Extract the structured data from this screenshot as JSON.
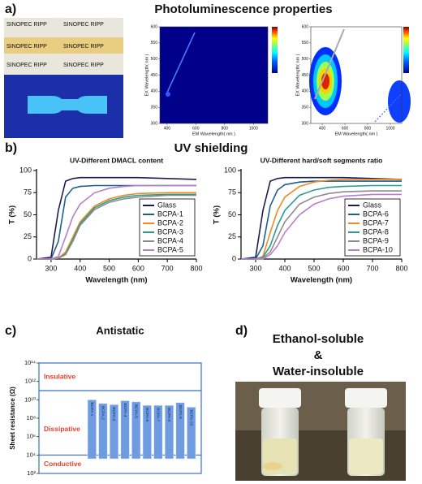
{
  "panels": {
    "a": {
      "label": "a)",
      "title": "Photoluminescence properties",
      "photo_text": "SINOPEC RIPP"
    },
    "b": {
      "label": "b)",
      "title": "UV shielding"
    },
    "c": {
      "label": "c)"
    },
    "d": {
      "label": "d)",
      "title": [
        "Ethanol-soluble",
        "&",
        "Water-insoluble"
      ]
    }
  },
  "chart_data": [
    {
      "type": "contour",
      "xlabel": "EM Wavelength( nm )",
      "ylabel": "EX Wavelength( nm )",
      "xlim": [
        350,
        1100
      ],
      "xticks": [
        400,
        600,
        800,
        1000
      ],
      "ylim": [
        300,
        600
      ],
      "yticks": [
        300,
        350,
        400,
        450,
        500,
        550,
        600
      ]
    },
    {
      "type": "contour",
      "xlabel": "EM Wavelength( nm )",
      "ylabel": "EX Wavelength( nm )",
      "xlim": [
        300,
        1100
      ],
      "xticks": [
        400,
        600,
        800,
        1000
      ],
      "ylim": [
        300,
        600
      ],
      "yticks": [
        300,
        350,
        400,
        450,
        500,
        550,
        600
      ]
    },
    {
      "type": "line",
      "title": "UV-Different DMACL content",
      "xlabel": "Wavelength (nm)",
      "ylabel": "T (%)",
      "x": [
        250,
        300,
        325,
        350,
        375,
        400,
        450,
        500,
        550,
        600,
        700,
        800
      ],
      "xlim": [
        250,
        800
      ],
      "xticks": [
        300,
        400,
        500,
        600,
        700,
        800
      ],
      "ylim": [
        0,
        100
      ],
      "yticks": [
        0,
        25,
        50,
        75,
        100
      ],
      "legend": "lower right",
      "series": [
        {
          "name": "Glass",
          "color": "#1b1f4f",
          "values": [
            0,
            2,
            55,
            88,
            91,
            92,
            92,
            92,
            92,
            92,
            91,
            90
          ]
        },
        {
          "name": "BCPA-1",
          "color": "#1f5f8f",
          "values": [
            0,
            0,
            20,
            70,
            80,
            82,
            83,
            83,
            83,
            83,
            83,
            83
          ]
        },
        {
          "name": "BCPA-2",
          "color": "#f08a24",
          "values": [
            0,
            0,
            1,
            8,
            25,
            42,
            60,
            68,
            72,
            74,
            75,
            75
          ]
        },
        {
          "name": "BCPA-3",
          "color": "#2a9d8f",
          "values": [
            0,
            0,
            1,
            6,
            22,
            40,
            58,
            66,
            70,
            72,
            73,
            73
          ]
        },
        {
          "name": "BCPA-4",
          "color": "#8c8c8c",
          "values": [
            0,
            0,
            1,
            5,
            20,
            38,
            56,
            64,
            68,
            70,
            72,
            72
          ]
        },
        {
          "name": "BCPA-5",
          "color": "#b97fc9",
          "values": [
            0,
            0,
            3,
            25,
            48,
            62,
            75,
            80,
            82,
            83,
            83,
            83
          ]
        }
      ]
    },
    {
      "type": "line",
      "title": "UV-Different hard/soft segments ratio",
      "xlabel": "Wavelength (nm)",
      "ylabel": "T (%)",
      "x": [
        250,
        300,
        325,
        350,
        375,
        400,
        450,
        500,
        550,
        600,
        700,
        800
      ],
      "xlim": [
        250,
        800
      ],
      "xticks": [
        300,
        400,
        500,
        600,
        700,
        800
      ],
      "ylim": [
        0,
        100
      ],
      "yticks": [
        0,
        25,
        50,
        75,
        100
      ],
      "legend": "lower right",
      "series": [
        {
          "name": "Glass",
          "color": "#1b1f4f",
          "values": [
            0,
            2,
            55,
            88,
            91,
            92,
            92,
            92,
            92,
            92,
            91,
            90
          ]
        },
        {
          "name": "BCPA-6",
          "color": "#1f5f8f",
          "values": [
            0,
            0,
            15,
            60,
            78,
            84,
            87,
            88,
            88,
            88,
            88,
            88
          ]
        },
        {
          "name": "BCPA-7",
          "color": "#f08a24",
          "values": [
            0,
            0,
            3,
            30,
            55,
            70,
            82,
            87,
            89,
            90,
            90,
            90
          ]
        },
        {
          "name": "BCPA-8",
          "color": "#2a9d8f",
          "values": [
            0,
            0,
            2,
            15,
            38,
            55,
            72,
            78,
            81,
            82,
            83,
            83
          ]
        },
        {
          "name": "BCPA-9",
          "color": "#8c8c8c",
          "values": [
            0,
            0,
            1,
            8,
            25,
            42,
            62,
            70,
            74,
            76,
            77,
            77
          ]
        },
        {
          "name": "BCPA-10",
          "color": "#b97fc9",
          "values": [
            0,
            0,
            0,
            5,
            15,
            30,
            50,
            62,
            68,
            71,
            73,
            73
          ]
        }
      ]
    },
    {
      "type": "bar",
      "title": "Antistatic",
      "ylabel": "Sheet resistance (Ω)",
      "log_scale": true,
      "color": "#6f9be0",
      "categories": [
        "BCPA-1",
        "BCPA-2",
        "BCPA-3",
        "BCPA-4",
        "BCPA-5",
        "BCPA-6",
        "BCPA-7",
        "BCPA-8",
        "BCPA-9",
        "BCPA-10"
      ],
      "values": [
        10000000000,
        4000000000,
        3000000000,
        8000000000,
        6000000000,
        2500000000,
        2500000000,
        2500000000,
        5000000000,
        1600000000
      ],
      "ylim": [
        100,
        100000000000000
      ],
      "yticks": [
        {
          "value": 100,
          "label": "10²"
        },
        {
          "value": 10000,
          "label": "10⁴"
        },
        {
          "value": 1000000,
          "label": "10⁶"
        },
        {
          "value": 100000000,
          "label": "10⁸"
        },
        {
          "value": 10000000000,
          "label": "10¹⁰"
        },
        {
          "value": 1000000000000,
          "label": "10¹²"
        },
        {
          "value": 100000000000000,
          "label": "10¹⁴"
        }
      ],
      "regions": [
        {
          "name": "Insulative",
          "from": 100000000000,
          "to": 100000000000000,
          "color": "#e8402f"
        },
        {
          "name": "Dissipative",
          "from": 10000,
          "to": 100000000000,
          "color": "#e8402f"
        },
        {
          "name": "Conductive",
          "from": 100,
          "to": 10000,
          "color": "#e8402f"
        }
      ]
    }
  ]
}
